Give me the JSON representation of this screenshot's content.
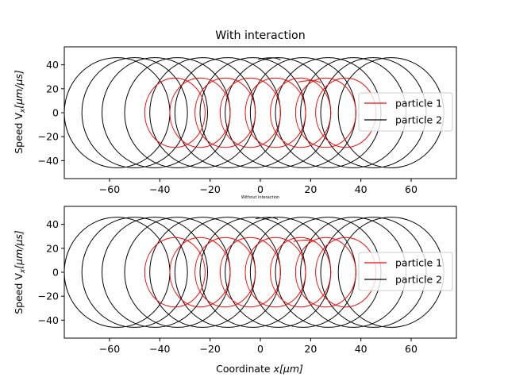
{
  "chart_data": [
    {
      "type": "line",
      "title": "With interaction",
      "xlabel": "",
      "ylabel": "Speed V_x[μm/μs]",
      "ylabel_main": "Speed V",
      "ylabel_sub": "x",
      "ylabel_tail": "[μm/μs]",
      "xlim": [
        -78,
        78
      ],
      "ylim": [
        -55,
        55
      ],
      "xticks": [
        -60,
        -40,
        -20,
        0,
        20,
        40,
        60
      ],
      "xtick_labels": [
        "−60",
        "−40",
        "−20",
        "0",
        "20",
        "40",
        "60"
      ],
      "yticks": [
        -40,
        -20,
        0,
        20,
        40
      ],
      "ytick_labels": [
        "−40",
        "−20",
        "0",
        "20",
        "40"
      ],
      "legend_position": "right",
      "grid": false,
      "series": [
        {
          "name": "particle 1",
          "color": "#ff0000",
          "center_x": [
            -34,
            -24,
            -14,
            -4,
            6,
            16,
            26,
            34
          ],
          "radius_x": 12,
          "amplitude_y": 29,
          "end_x": 24,
          "end_y": 27
        },
        {
          "name": "particle 2",
          "color": "#000000",
          "center_x": [
            -57,
            -50,
            -42,
            -33,
            -23,
            -13,
            -3,
            7,
            17,
            27,
            37,
            45,
            52
          ],
          "radius_x": 21,
          "amplitude_y": 46,
          "end_x": 8,
          "end_y": 46
        }
      ]
    },
    {
      "type": "line",
      "title": "Without interaction",
      "xlabel": "Coordinate x[μm]",
      "xlabel_main": "Coordinate ",
      "xlabel_var": "x",
      "xlabel_tail": "[μm]",
      "ylabel": "Speed V_x[μm/μs]",
      "ylabel_main": "Speed V",
      "ylabel_sub": "x",
      "ylabel_tail": "[μm/μs]",
      "xlim": [
        -78,
        78
      ],
      "ylim": [
        -55,
        55
      ],
      "xticks": [
        -60,
        -40,
        -20,
        0,
        20,
        40,
        60
      ],
      "xtick_labels": [
        "−60",
        "−40",
        "−20",
        "0",
        "20",
        "40",
        "60"
      ],
      "yticks": [
        -40,
        -20,
        0,
        20,
        40
      ],
      "ytick_labels": [
        "−40",
        "−20",
        "0",
        "20",
        "40"
      ],
      "legend_position": "right",
      "grid": false,
      "series": [
        {
          "name": "particle 1",
          "color": "#ff0000",
          "center_x": [
            -34,
            -24,
            -14,
            -4,
            6,
            16,
            26,
            34
          ],
          "radius_x": 12,
          "amplitude_y": 29,
          "end_x": 22,
          "end_y": 27
        },
        {
          "name": "particle 2",
          "color": "#000000",
          "center_x": [
            -57,
            -50,
            -42,
            -33,
            -23,
            -13,
            -3,
            7,
            17,
            27,
            37,
            45,
            52
          ],
          "radius_x": 21,
          "amplitude_y": 46,
          "end_x": 7,
          "end_y": 46
        }
      ]
    }
  ]
}
